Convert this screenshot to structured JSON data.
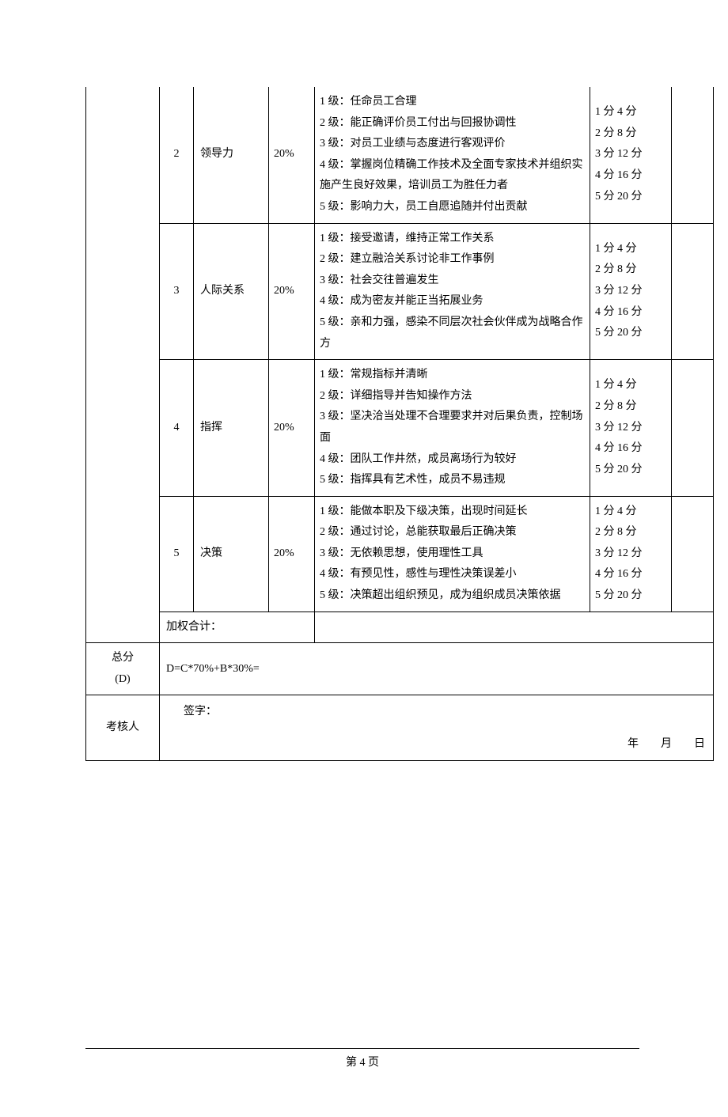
{
  "rows": [
    {
      "num": "2",
      "name": "领导力",
      "weight": "20%",
      "criteria": "1 级：任命员工合理\n2 级：能正确评价员工付出与回报协调性\n3 级：对员工业绩与态度进行客观评价\n4 级：掌握岗位精确工作技术及全面专家技术并组织实施产生良好效果，培训员工为胜任力者\n5 级：影响力大，员工自愿追随并付出贡献",
      "score": "1 分 4 分\n2 分 8 分\n3 分 12 分\n4 分 16 分\n5 分 20 分"
    },
    {
      "num": "3",
      "name": "人际关系",
      "weight": "20%",
      "criteria": "1 级：接受邀请，维持正常工作关系\n2 级：建立融洽关系讨论非工作事例\n3 级：社会交往普遍发生\n4 级：成为密友并能正当拓展业务\n5 级：亲和力强，感染不同层次社会伙伴成为战略合作方",
      "score": "1 分 4 分\n2 分 8 分\n3 分 12 分\n4 分 16 分\n5 分 20 分"
    },
    {
      "num": "4",
      "name": "指挥",
      "weight": "20%",
      "criteria": "1 级：常规指标并清晰\n2 级：详细指导并告知操作方法\n3 级：坚决洽当处理不合理要求并对后果负责，控制场面\n4 级：团队工作井然，成员离场行为较好\n5 级：指挥具有艺术性，成员不易违规",
      "score": "1 分 4 分\n2 分 8 分\n3 分 12 分\n4 分 16 分\n5 分 20 分"
    },
    {
      "num": "5",
      "name": "决策",
      "weight": "20%",
      "criteria": "1 级：能做本职及下级决策，出现时间延长\n2 级：通过讨论，总能获取最后正确决策\n3 级：无依赖思想，使用理性工具\n4 级：有预见性，感性与理性决策误差小\n5 级：决策超出组织预见，成为组织成员决策依据",
      "score": "1 分 4 分\n2 分 8 分\n3 分 12 分\n4 分 16 分\n5 分 20 分"
    }
  ],
  "weightedTotal": "加权合计：",
  "totalLabel": "总分\n(D)",
  "totalFormula": "D=C*70%+B*30%=",
  "reviewerLabel": "考核人",
  "signature": "签字：",
  "dateLine": "年　　月　　日",
  "pageNumber": "第 4 页"
}
